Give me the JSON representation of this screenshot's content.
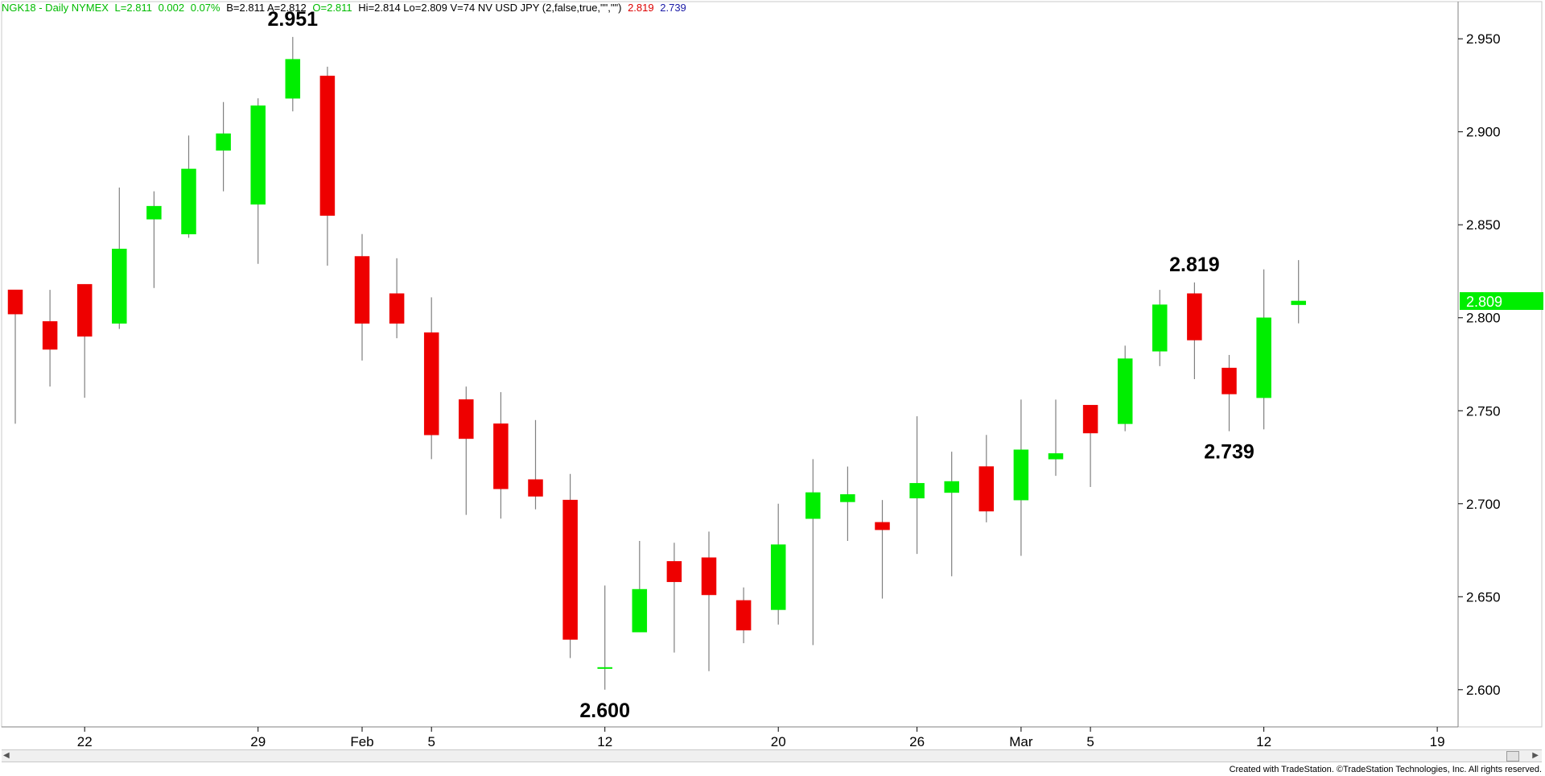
{
  "header": {
    "symbol": "NGK18 - Daily  NYMEX",
    "last": "L=2.811",
    "change": "0.002",
    "pct": "0.07%",
    "quote": "B=2.811  A=2.812",
    "open": "O=2.811",
    "rest": "Hi=2.814  Lo=2.809  V=74  NV USD JPY (2,false,true,\"\",\"\")",
    "level_high": "2.819",
    "level_low": "2.739",
    "color_green": "#00bb00",
    "color_red": "#dd0000",
    "color_blue": "#1a1aa6"
  },
  "footer": {
    "text": "Created with TradeStation. ©TradeStation Technologies, Inc. All rights reserved."
  },
  "chart_data": {
    "type": "candlestick",
    "y_axis": {
      "min": 2.58,
      "max": 2.97,
      "ticks": [
        "2.600",
        "2.650",
        "2.700",
        "2.750",
        "2.800",
        "2.850",
        "2.900",
        "2.950"
      ],
      "side": "right"
    },
    "x_labels": [
      {
        "label": "22",
        "index": 2
      },
      {
        "label": "29",
        "index": 7
      },
      {
        "label": "Feb",
        "index": 10
      },
      {
        "label": "5",
        "index": 12
      },
      {
        "label": "12",
        "index": 17
      },
      {
        "label": "20",
        "index": 22
      },
      {
        "label": "26",
        "index": 26
      },
      {
        "label": "Mar",
        "index": 29
      },
      {
        "label": "5",
        "index": 31
      },
      {
        "label": "12",
        "index": 36
      },
      {
        "label": "19",
        "index": 41
      }
    ],
    "last_price": "2.809",
    "colors": {
      "up": "#00ee00",
      "down": "#ee0000",
      "wick": "#808080",
      "price_tag": "#00ee00"
    },
    "annotations": [
      {
        "text": "2.951",
        "index": 8,
        "price": 2.951,
        "position": "above"
      },
      {
        "text": "2.600",
        "index": 17,
        "price": 2.6,
        "position": "below"
      },
      {
        "text": "2.819",
        "index": 34,
        "price": 2.819,
        "position": "above"
      },
      {
        "text": "2.739",
        "index": 35,
        "price": 2.739,
        "position": "below"
      }
    ],
    "candles": [
      {
        "o": 2.815,
        "h": 2.815,
        "l": 2.743,
        "c": 2.802
      },
      {
        "o": 2.798,
        "h": 2.815,
        "l": 2.763,
        "c": 2.783
      },
      {
        "o": 2.818,
        "h": 2.818,
        "l": 2.757,
        "c": 2.79
      },
      {
        "o": 2.797,
        "h": 2.87,
        "l": 2.794,
        "c": 2.837
      },
      {
        "o": 2.853,
        "h": 2.868,
        "l": 2.816,
        "c": 2.86
      },
      {
        "o": 2.845,
        "h": 2.898,
        "l": 2.843,
        "c": 2.88
      },
      {
        "o": 2.89,
        "h": 2.916,
        "l": 2.868,
        "c": 2.899
      },
      {
        "o": 2.861,
        "h": 2.918,
        "l": 2.829,
        "c": 2.914
      },
      {
        "o": 2.918,
        "h": 2.951,
        "l": 2.911,
        "c": 2.939
      },
      {
        "o": 2.93,
        "h": 2.935,
        "l": 2.828,
        "c": 2.855
      },
      {
        "o": 2.833,
        "h": 2.845,
        "l": 2.777,
        "c": 2.797
      },
      {
        "o": 2.813,
        "h": 2.832,
        "l": 2.789,
        "c": 2.797
      },
      {
        "o": 2.792,
        "h": 2.811,
        "l": 2.724,
        "c": 2.737
      },
      {
        "o": 2.756,
        "h": 2.763,
        "l": 2.694,
        "c": 2.735
      },
      {
        "o": 2.743,
        "h": 2.76,
        "l": 2.692,
        "c": 2.708
      },
      {
        "o": 2.713,
        "h": 2.745,
        "l": 2.697,
        "c": 2.704
      },
      {
        "o": 2.702,
        "h": 2.716,
        "l": 2.617,
        "c": 2.627
      },
      {
        "o": 2.612,
        "h": 2.656,
        "l": 2.6,
        "c": 2.612
      },
      {
        "o": 2.631,
        "h": 2.68,
        "l": 2.631,
        "c": 2.654
      },
      {
        "o": 2.669,
        "h": 2.679,
        "l": 2.62,
        "c": 2.658
      },
      {
        "o": 2.671,
        "h": 2.685,
        "l": 2.61,
        "c": 2.651
      },
      {
        "o": 2.648,
        "h": 2.655,
        "l": 2.625,
        "c": 2.632
      },
      {
        "o": 2.643,
        "h": 2.7,
        "l": 2.635,
        "c": 2.678
      },
      {
        "o": 2.692,
        "h": 2.724,
        "l": 2.624,
        "c": 2.706
      },
      {
        "o": 2.701,
        "h": 2.72,
        "l": 2.68,
        "c": 2.705
      },
      {
        "o": 2.69,
        "h": 2.702,
        "l": 2.649,
        "c": 2.686
      },
      {
        "o": 2.703,
        "h": 2.747,
        "l": 2.673,
        "c": 2.711
      },
      {
        "o": 2.706,
        "h": 2.728,
        "l": 2.661,
        "c": 2.712
      },
      {
        "o": 2.72,
        "h": 2.737,
        "l": 2.69,
        "c": 2.696
      },
      {
        "o": 2.702,
        "h": 2.756,
        "l": 2.672,
        "c": 2.729
      },
      {
        "o": 2.724,
        "h": 2.756,
        "l": 2.715,
        "c": 2.727
      },
      {
        "o": 2.753,
        "h": 2.753,
        "l": 2.709,
        "c": 2.738
      },
      {
        "o": 2.743,
        "h": 2.785,
        "l": 2.739,
        "c": 2.778
      },
      {
        "o": 2.782,
        "h": 2.815,
        "l": 2.774,
        "c": 2.807
      },
      {
        "o": 2.813,
        "h": 2.819,
        "l": 2.767,
        "c": 2.788
      },
      {
        "o": 2.773,
        "h": 2.78,
        "l": 2.739,
        "c": 2.759
      },
      {
        "o": 2.757,
        "h": 2.826,
        "l": 2.74,
        "c": 2.8
      },
      {
        "o": 2.807,
        "h": 2.831,
        "l": 2.797,
        "c": 2.809
      }
    ]
  }
}
